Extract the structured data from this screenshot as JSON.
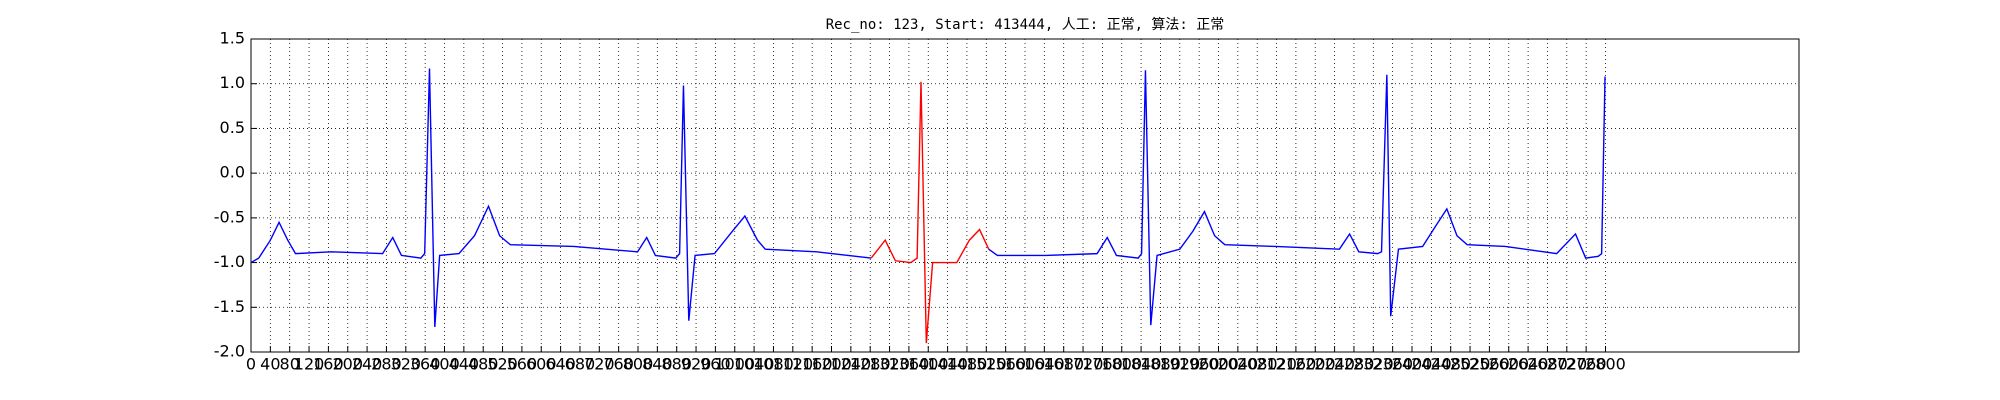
{
  "chart_data": {
    "type": "line",
    "title": "Rec_no: 123, Start: 413444, 人工: 正常, 算法: 正常",
    "xlim": [
      0,
      3200
    ],
    "ylim": [
      -2,
      1.5
    ],
    "xticks": [
      0,
      40,
      80,
      120,
      160,
      200,
      240,
      280,
      320,
      360,
      400,
      440,
      480,
      520,
      560,
      600,
      640,
      680,
      720,
      760,
      800,
      840,
      880,
      920,
      960,
      1000,
      1040,
      1080,
      1120,
      1160,
      1200,
      1240,
      1280,
      1320,
      1360,
      1400,
      1440,
      1480,
      1520,
      1560,
      1600,
      1640,
      1680,
      1720,
      1760,
      1800,
      1840,
      1880,
      1920,
      1960,
      2000,
      2040,
      2080,
      2120,
      2160,
      2200,
      2240,
      2280,
      2320,
      2360,
      2400,
      2440,
      2480,
      2520,
      2560,
      2600,
      2640,
      2680,
      2720,
      2760,
      2800
    ],
    "yticks": [
      {
        "value": -2,
        "label": "-2.0"
      },
      -1.5,
      {
        "value": -1,
        "label": "-1.0"
      },
      -0.5,
      {
        "value": 0,
        "label": "0.0"
      },
      0.5,
      {
        "value": 1,
        "label": "1.0"
      },
      1.5
    ],
    "grid": true,
    "series": [
      {
        "color": "#0000ff",
        "x": [
          0,
          16,
          40,
          58,
          76,
          92,
          166,
          272,
          293,
          311,
          351,
          359,
          369,
          380,
          390,
          430,
          462,
          491,
          514,
          536,
          667,
          799,
          818,
          836,
          878,
          886,
          894,
          905,
          918,
          958,
          995,
          1021,
          1047,
          1063,
          1169,
          1282
        ],
        "values": [
          -1.0,
          -0.95,
          -0.75,
          -0.55,
          -0.75,
          -0.9,
          -0.88,
          -0.9,
          -0.72,
          -0.92,
          -0.95,
          -0.9,
          1.17,
          -1.72,
          -0.92,
          -0.9,
          -0.7,
          -0.37,
          -0.7,
          -0.8,
          -0.82,
          -0.88,
          -0.72,
          -0.92,
          -0.95,
          -0.9,
          0.98,
          -1.65,
          -0.92,
          -0.9,
          -0.65,
          -0.48,
          -0.75,
          -0.85,
          -0.88,
          -0.95
        ]
      },
      {
        "color": "#ff0000",
        "x": [
          1282,
          1311,
          1332,
          1364,
          1377,
          1385,
          1396,
          1409,
          1459,
          1485,
          1506,
          1525
        ],
        "values": [
          -0.95,
          -0.75,
          -0.98,
          -1.0,
          -0.95,
          1.02,
          -1.9,
          -1.0,
          -1.0,
          -0.75,
          -0.63,
          -0.85
        ]
      },
      {
        "color": "#0000ff",
        "x": [
          1525,
          1543,
          1643,
          1749,
          1770,
          1789,
          1834,
          1841,
          1849,
          1860,
          1873,
          1920,
          1947,
          1971,
          1992,
          2013,
          2118,
          2250,
          2271,
          2290,
          2329,
          2337,
          2348,
          2356,
          2372,
          2422,
          2448,
          2472,
          2493,
          2514,
          2593,
          2699,
          2738,
          2759,
          2785,
          2792,
          2799
        ],
        "values": [
          -0.85,
          -0.92,
          -0.92,
          -0.9,
          -0.72,
          -0.92,
          -0.95,
          -0.9,
          1.15,
          -1.7,
          -0.92,
          -0.85,
          -0.65,
          -0.43,
          -0.7,
          -0.8,
          -0.82,
          -0.85,
          -0.68,
          -0.88,
          -0.9,
          -0.88,
          1.1,
          -1.6,
          -0.85,
          -0.82,
          -0.6,
          -0.4,
          -0.7,
          -0.8,
          -0.82,
          -0.9,
          -0.68,
          -0.95,
          -0.93,
          -0.9,
          1.08
        ]
      }
    ]
  }
}
